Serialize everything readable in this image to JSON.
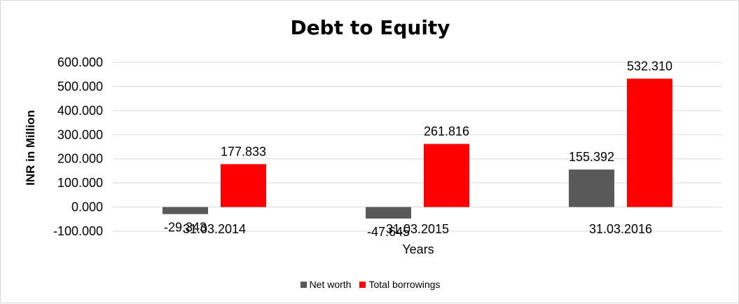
{
  "chart_data": {
    "type": "bar",
    "title": "Debt to Equity",
    "xlabel": "Years",
    "ylabel": "INR in Million",
    "categories": [
      "31.03.2014",
      "31.03.2015",
      "31.03.2016"
    ],
    "series": [
      {
        "name": "Net worth",
        "color": "#595959",
        "values": [
          -29.343,
          -47.645,
          155.392
        ],
        "labels": [
          "-29.343",
          "-47.645",
          "155.392"
        ]
      },
      {
        "name": "Total borrowings",
        "color": "#ff0000",
        "values": [
          177.833,
          261.816,
          532.31
        ],
        "labels": [
          "177.833",
          "261.816",
          "532.310"
        ]
      }
    ],
    "ylim": [
      -100,
      600
    ],
    "yticks": [
      600,
      500,
      400,
      300,
      200,
      100,
      0,
      -100
    ],
    "ytick_labels": [
      "600.000",
      "500.000",
      "400.000",
      "300.000",
      "200.000",
      "100.000",
      "0.000",
      "-100.000"
    ],
    "grid": true,
    "legend_position": "bottom"
  }
}
